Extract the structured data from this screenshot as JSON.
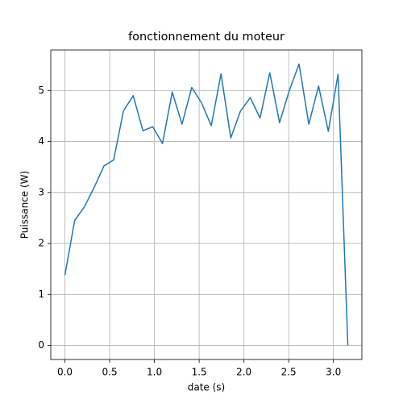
{
  "chart_data": {
    "type": "line",
    "title": "fonctionnement du moteur",
    "x_label": "date (s)",
    "y_label": "Puissance (W)",
    "x": [
      0,
      0.109,
      0.218,
      0.327,
      0.436,
      0.545,
      0.654,
      0.763,
      0.872,
      0.981,
      1.09,
      1.199,
      1.308,
      1.417,
      1.526,
      1.635,
      1.744,
      1.853,
      1.962,
      2.071,
      2.18,
      2.289,
      2.398,
      2.507,
      2.616,
      2.725,
      2.834,
      2.943,
      3.052,
      3.161
    ],
    "series": [
      {
        "color": "#1f77b4",
        "values": [
          1.38,
          2.45,
          2.72,
          3.1,
          3.52,
          3.64,
          4.6,
          4.9,
          4.21,
          4.29,
          3.96,
          4.97,
          4.34,
          5.06,
          4.76,
          4.31,
          5.33,
          4.07,
          4.6,
          4.86,
          4.46,
          5.35,
          4.37,
          5.0,
          5.52,
          4.34,
          5.09,
          4.2,
          5.32,
          0
        ]
      }
    ],
    "xlim": [
      -0.158,
      3.318
    ],
    "ylim": [
      -0.276,
      5.796
    ],
    "xticks": [
      {
        "value": 0,
        "label": "0.0"
      },
      {
        "value": 0.5,
        "label": "0.5"
      },
      {
        "value": 1,
        "label": "1.0"
      },
      {
        "value": 1.5,
        "label": "1.5"
      },
      {
        "value": 2,
        "label": "2.0"
      },
      {
        "value": 2.5,
        "label": "2.5"
      },
      {
        "value": 3,
        "label": "3.0"
      }
    ],
    "yticks": [
      0,
      1,
      2,
      3,
      4,
      5
    ],
    "grid": true
  }
}
